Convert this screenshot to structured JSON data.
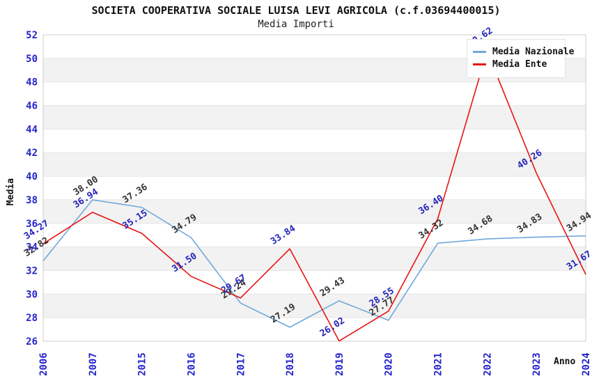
{
  "chart_data": {
    "type": "line",
    "title": "SOCIETA COOPERATIVA SOCIALE LUISA LEVI AGRICOLA (c.f.03694400015)",
    "subtitle": "Media Importi",
    "xlabel": "Anno",
    "ylabel": "Media",
    "ylim": [
      26,
      52
    ],
    "ytick_step": 2,
    "grid": "horizontal-bands-alternating",
    "legend_position": "top-right",
    "categories": [
      "2006",
      "2007",
      "2015",
      "2016",
      "2017",
      "2018",
      "2019",
      "2020",
      "2021",
      "2022",
      "2023",
      "2024"
    ],
    "series": [
      {
        "name": "Media Nazionale",
        "color": "#6fa8dc",
        "label_color": "#333333",
        "values": [
          32.82,
          38.0,
          37.36,
          34.79,
          29.24,
          27.19,
          29.43,
          27.77,
          34.32,
          34.68,
          34.83,
          34.94
        ]
      },
      {
        "name": "Media Ente",
        "color": "#e81313",
        "label_color": "#2323bb",
        "values": [
          34.27,
          36.94,
          35.15,
          31.5,
          29.67,
          33.84,
          26.02,
          28.55,
          36.4,
          50.62,
          40.26,
          31.67
        ]
      }
    ],
    "colors": {
      "tick_label": "#2424cc",
      "band_fill": "#f2f2f2",
      "gridline": "#e5e5e5",
      "plot_border": "#cccccc"
    }
  }
}
